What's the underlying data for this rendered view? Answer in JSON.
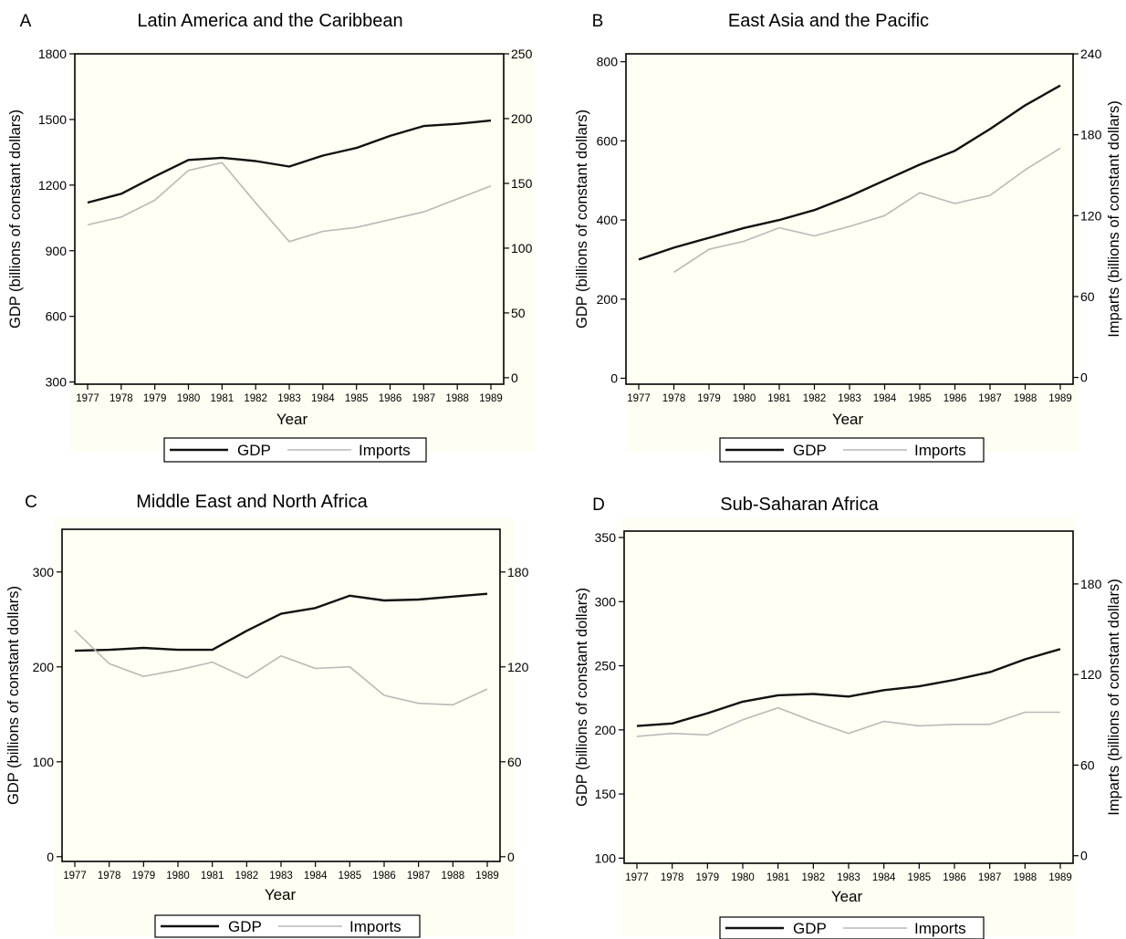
{
  "chart_data": [
    {
      "panel_letter": "A",
      "type": "line",
      "title": "Latin America and the Caribbean",
      "xlabel": "Year",
      "ylabel": "GDP (billions of constant dollars)",
      "y2label": "",
      "x": [
        "1977",
        "1978",
        "1979",
        "1980",
        "1981",
        "1982",
        "1983",
        "1984",
        "1985",
        "1986",
        "1987",
        "1988",
        "1989"
      ],
      "ylim": [
        290,
        1800
      ],
      "y2lim": [
        -5,
        250
      ],
      "yticks": [
        "300",
        "600",
        "900",
        "1200",
        "1500",
        "1800"
      ],
      "y2ticks": [
        "0",
        "50",
        "100",
        "150",
        "200",
        "250"
      ],
      "grid": false,
      "legend_position": "bottom",
      "series": [
        {
          "name": "GDP",
          "axis": "left",
          "color": "#111111",
          "values": [
            1120,
            1160,
            1240,
            1315,
            1325,
            1310,
            1285,
            1335,
            1370,
            1425,
            1470,
            1480,
            1495
          ]
        },
        {
          "name": "Imports",
          "axis": "right",
          "color": "#b9b9b9",
          "values": [
            118,
            124,
            137,
            160,
            166,
            135,
            105,
            113,
            116,
            122,
            128,
            138,
            148
          ]
        }
      ]
    },
    {
      "panel_letter": "B",
      "type": "line",
      "title": "East Asia and the Pacific",
      "xlabel": "Year",
      "ylabel": "GDP (billions of constant dollars)",
      "y2label": "Imparts (billions of constant dollars)",
      "x": [
        "1977",
        "1978",
        "1979",
        "1980",
        "1981",
        "1982",
        "1983",
        "1984",
        "1985",
        "1986",
        "1987",
        "1988",
        "1989"
      ],
      "ylim": [
        -15,
        820
      ],
      "y2lim": [
        -5,
        240
      ],
      "yticks": [
        "0",
        "200",
        "400",
        "600",
        "800"
      ],
      "y2ticks": [
        "0",
        "60",
        "120",
        "180",
        "240"
      ],
      "grid": false,
      "legend_position": "bottom",
      "series": [
        {
          "name": "GDP",
          "axis": "left",
          "color": "#111111",
          "values": [
            300,
            330,
            355,
            380,
            400,
            425,
            460,
            500,
            540,
            575,
            630,
            690,
            740
          ]
        },
        {
          "name": "Imports",
          "axis": "right",
          "color": "#b9b9b9",
          "values": [
            null,
            78,
            95,
            101,
            111,
            105,
            112,
            120,
            137,
            129,
            135,
            154,
            170
          ]
        }
      ]
    },
    {
      "panel_letter": "C",
      "type": "line",
      "title": "Middle East and North Africa",
      "xlabel": "Year",
      "ylabel": "GDP (billions of constant dollars)",
      "y2label": "",
      "x": [
        "1977",
        "1978",
        "1979",
        "1980",
        "1981",
        "1982",
        "1983",
        "1984",
        "1985",
        "1986",
        "1987",
        "1988",
        "1989"
      ],
      "ylim": [
        -5,
        345
      ],
      "y2lim": [
        -3,
        207
      ],
      "yticks": [
        "0",
        "100",
        "200",
        "300"
      ],
      "y2ticks": [
        "0",
        "60",
        "120",
        "180"
      ],
      "grid": false,
      "legend_position": "bottom",
      "series": [
        {
          "name": "GDP",
          "axis": "left",
          "color": "#111111",
          "values": [
            217,
            218,
            220,
            218,
            218,
            238,
            256,
            262,
            275,
            270,
            271,
            274,
            277
          ]
        },
        {
          "name": "Imports",
          "axis": "right",
          "color": "#b9b9b9",
          "values": [
            143,
            122,
            114,
            118,
            123,
            113,
            127,
            119,
            120,
            102,
            97,
            96,
            106
          ]
        }
      ]
    },
    {
      "panel_letter": "D",
      "type": "line",
      "title": "Sub-Saharan Africa",
      "xlabel": "Year",
      "ylabel": "GDP (billions of constant dollars)",
      "y2label": "Imparts (billions of constant dollars)",
      "x": [
        "1977",
        "1978",
        "1979",
        "1980",
        "1981",
        "1982",
        "1983",
        "1984",
        "1985",
        "1986",
        "1987",
        "1988",
        "1989"
      ],
      "ylim": [
        96,
        355
      ],
      "y2lim": [
        -5,
        215
      ],
      "yticks": [
        "100",
        "150",
        "200",
        "250",
        "300",
        "350"
      ],
      "y2ticks": [
        "0",
        "60",
        "120",
        "180"
      ],
      "grid": false,
      "legend_position": "bottom",
      "series": [
        {
          "name": "GDP",
          "axis": "left",
          "color": "#111111",
          "values": [
            203,
            205,
            213,
            222,
            227,
            228,
            226,
            231,
            234,
            239,
            245,
            255,
            263
          ]
        },
        {
          "name": "Imports",
          "axis": "right",
          "color": "#b9b9b9",
          "values": [
            79,
            81,
            80,
            90,
            98,
            89,
            81,
            89,
            86,
            87,
            87,
            95,
            95
          ]
        }
      ]
    }
  ]
}
